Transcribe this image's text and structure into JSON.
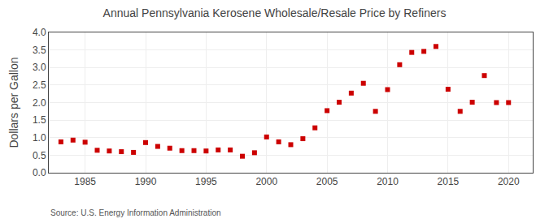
{
  "chart_data": {
    "type": "scatter",
    "title": "Annual Pennsylvania Kerosene Wholesale/Resale Price by Refiners",
    "ylabel": "Dollars per Gallon",
    "source": "Source: U.S. Energy Information Administration",
    "x": [
      1983,
      1984,
      1985,
      1986,
      1987,
      1988,
      1989,
      1990,
      1991,
      1992,
      1993,
      1994,
      1995,
      1996,
      1997,
      1998,
      1999,
      2000,
      2001,
      2002,
      2003,
      2004,
      2005,
      2006,
      2007,
      2008,
      2009,
      2010,
      2011,
      2012,
      2013,
      2014,
      2015,
      2016,
      2017,
      2018,
      2019,
      2020
    ],
    "values": [
      0.88,
      0.93,
      0.87,
      0.64,
      0.62,
      0.6,
      0.58,
      0.86,
      0.75,
      0.7,
      0.63,
      0.63,
      0.62,
      0.65,
      0.65,
      0.47,
      0.57,
      1.02,
      0.88,
      0.8,
      0.97,
      1.28,
      1.77,
      2.01,
      2.27,
      2.55,
      1.75,
      2.37,
      3.08,
      3.43,
      3.46,
      3.6,
      2.38,
      1.75,
      2.01,
      2.77,
      2.0,
      2.0
    ],
    "color": "#cc0000",
    "marker": "square",
    "xlim": [
      1982,
      2022
    ],
    "xticks": [
      1985,
      1990,
      1995,
      2000,
      2005,
      2010,
      2015,
      2020
    ],
    "ylim": [
      0.0,
      4.0
    ],
    "yticks": [
      {
        "value": 0.0,
        "label": "0.0"
      },
      0.5,
      {
        "value": 1.0,
        "label": "1.0"
      },
      1.5,
      {
        "value": 2.0,
        "label": "2.0"
      },
      2.5,
      {
        "value": 3.0,
        "label": "3.0"
      },
      3.5,
      {
        "value": 4.0,
        "label": "4.0"
      }
    ],
    "grid": true
  }
}
